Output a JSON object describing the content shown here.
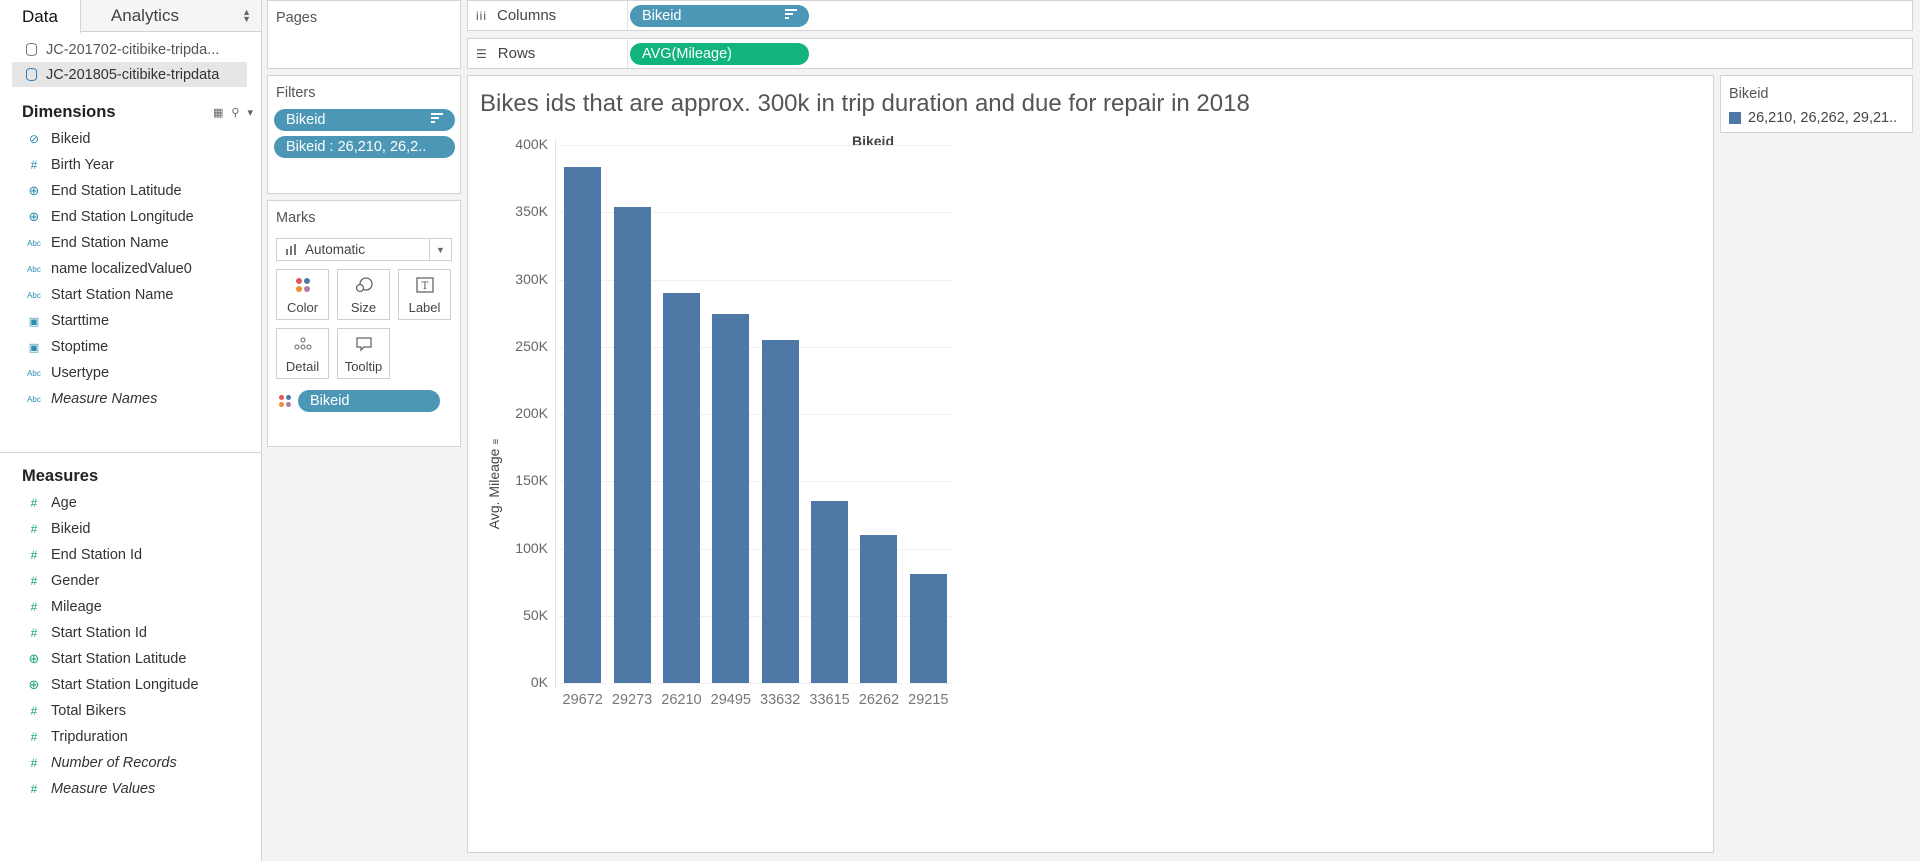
{
  "data_pane": {
    "tabs": [
      "Data",
      "Analytics"
    ],
    "sources": [
      "JC-201702-citibike-tripda...",
      "JC-201805-citibike-tripdata"
    ],
    "dimensions_title": "Dimensions",
    "dimensions": [
      {
        "icon": "paperclip",
        "name": "Bikeid",
        "italic": false
      },
      {
        "icon": "#",
        "name": "Birth Year",
        "italic": false
      },
      {
        "icon": "globe",
        "name": "End Station Latitude",
        "italic": false
      },
      {
        "icon": "globe",
        "name": "End Station Longitude",
        "italic": false
      },
      {
        "icon": "Abc",
        "name": "End Station Name",
        "italic": false
      },
      {
        "icon": "Abc",
        "name": "name localizedValue0",
        "italic": false
      },
      {
        "icon": "Abc",
        "name": "Start Station Name",
        "italic": false
      },
      {
        "icon": "calendar",
        "name": "Starttime",
        "italic": false
      },
      {
        "icon": "calendar",
        "name": "Stoptime",
        "italic": false
      },
      {
        "icon": "Abc",
        "name": "Usertype",
        "italic": false
      },
      {
        "icon": "Abc",
        "name": "Measure Names",
        "italic": true
      }
    ],
    "measures_title": "Measures",
    "measures": [
      {
        "icon": "#",
        "name": "Age",
        "italic": false
      },
      {
        "icon": "#",
        "name": "Bikeid",
        "italic": false
      },
      {
        "icon": "#",
        "name": "End Station Id",
        "italic": false
      },
      {
        "icon": "#",
        "name": "Gender",
        "italic": false
      },
      {
        "icon": "#",
        "name": "Mileage",
        "italic": false
      },
      {
        "icon": "#",
        "name": "Start Station Id",
        "italic": false
      },
      {
        "icon": "globe",
        "name": "Start Station Latitude",
        "italic": false
      },
      {
        "icon": "globe",
        "name": "Start Station Longitude",
        "italic": false
      },
      {
        "icon": "#",
        "name": "Total Bikers",
        "italic": false
      },
      {
        "icon": "#",
        "name": "Tripduration",
        "italic": false
      },
      {
        "icon": "#",
        "name": "Number of Records",
        "italic": true
      },
      {
        "icon": "#",
        "name": "Measure Values",
        "italic": true
      }
    ]
  },
  "cards": {
    "pages_title": "Pages",
    "filters_title": "Filters",
    "filters": [
      "Bikeid",
      "Bikeid : 26,210, 26,2.."
    ],
    "marks_title": "Marks",
    "mark_type": "Automatic",
    "mark_buttons": [
      "Color",
      "Size",
      "Label",
      "Detail",
      "Tooltip"
    ],
    "mark_pill": "Bikeid"
  },
  "shelves": {
    "columns_label": "Columns",
    "columns_pill": "Bikeid",
    "rows_label": "Rows",
    "rows_pill": "AVG(Mileage)"
  },
  "viz": {
    "title": "Bikes ids that are approx. 300k in trip duration and due for repair in 2018",
    "x_header": "Bikeid",
    "y_label": "Avg. Mileage"
  },
  "legend": {
    "title": "Bikeid",
    "item": "26,210, 26,262, 29,21.."
  },
  "colors": {
    "bar": "#4e79a7",
    "dimension_pill": "#4c97b6",
    "measure_pill": "#11b37f"
  },
  "chart_data": {
    "type": "bar",
    "title": "Bikes ids that are approx. 300k in trip duration and due for repair in 2018",
    "xlabel": "Bikeid",
    "ylabel": "Avg. Mileage",
    "categories": [
      "29672",
      "29273",
      "26210",
      "29495",
      "33632",
      "33615",
      "26262",
      "29215"
    ],
    "values": [
      384000,
      354000,
      290000,
      274000,
      255000,
      135000,
      110000,
      81000
    ],
    "ylim": [
      0,
      400000
    ],
    "yticks": [
      "0K",
      "50K",
      "100K",
      "150K",
      "200K",
      "250K",
      "300K",
      "350K",
      "400K"
    ],
    "grid": true,
    "legend": "top-right"
  }
}
